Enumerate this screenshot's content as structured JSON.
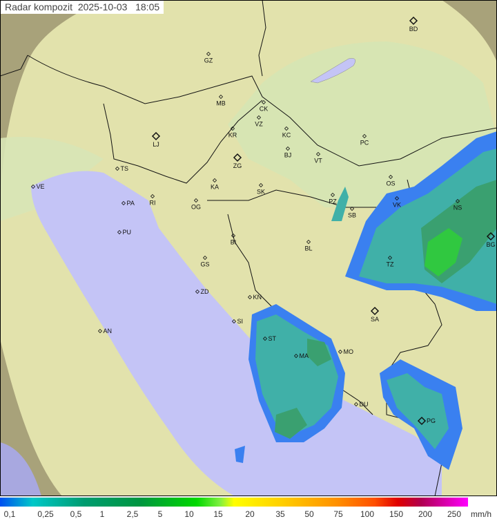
{
  "title": {
    "label": "Radar kompozit",
    "date": "2025-10-03",
    "time": "18:05"
  },
  "title_text": "Radar kompozit  2025-10-03   18:05",
  "cities": [
    {
      "code": "GZ",
      "major": false
    },
    {
      "code": "MB",
      "major": false
    },
    {
      "code": "CK",
      "major": false
    },
    {
      "code": "VZ",
      "major": false
    },
    {
      "code": "KR",
      "major": false
    },
    {
      "code": "KC",
      "major": false
    },
    {
      "code": "LJ",
      "major": true
    },
    {
      "code": "ZG",
      "major": true
    },
    {
      "code": "BJ",
      "major": false
    },
    {
      "code": "VT",
      "major": false
    },
    {
      "code": "PC",
      "major": false
    },
    {
      "code": "BD",
      "major": true
    },
    {
      "code": "TS",
      "major": false
    },
    {
      "code": "VE",
      "major": false
    },
    {
      "code": "RI",
      "major": false
    },
    {
      "code": "PA",
      "major": false
    },
    {
      "code": "KA",
      "major": false
    },
    {
      "code": "SK",
      "major": false
    },
    {
      "code": "OG",
      "major": false
    },
    {
      "code": "PU",
      "major": false
    },
    {
      "code": "OS",
      "major": false
    },
    {
      "code": "VK",
      "major": false
    },
    {
      "code": "NS",
      "major": false
    },
    {
      "code": "BG",
      "major": true
    },
    {
      "code": "PZ",
      "major": false
    },
    {
      "code": "SB",
      "major": false
    },
    {
      "code": "BI",
      "major": false
    },
    {
      "code": "BL",
      "major": false
    },
    {
      "code": "GS",
      "major": false
    },
    {
      "code": "ZD",
      "major": false
    },
    {
      "code": "KN",
      "major": false
    },
    {
      "code": "SI",
      "major": false
    },
    {
      "code": "ST",
      "major": false
    },
    {
      "code": "MA",
      "major": false
    },
    {
      "code": "MO",
      "major": false
    },
    {
      "code": "DU",
      "major": false
    },
    {
      "code": "PG",
      "major": true
    },
    {
      "code": "AN",
      "major": false
    },
    {
      "code": "SA",
      "major": true
    },
    {
      "code": "TZ",
      "major": false
    }
  ],
  "legend": {
    "unit": "mm/h",
    "ticks": [
      "0,1",
      "0,25",
      "0,5",
      "1",
      "2,5",
      "5",
      "10",
      "15",
      "20",
      "35",
      "50",
      "75",
      "100",
      "150",
      "200",
      "250"
    ]
  },
  "colors": {
    "sea": "#c4c4f6",
    "land": "#e4e4ae",
    "lowland": "#d6e6b4",
    "outside": "#a8a27a",
    "rain_light": "#3a80f0",
    "rain_mid": "#40b0a8",
    "rain_heavy": "#30c840"
  }
}
